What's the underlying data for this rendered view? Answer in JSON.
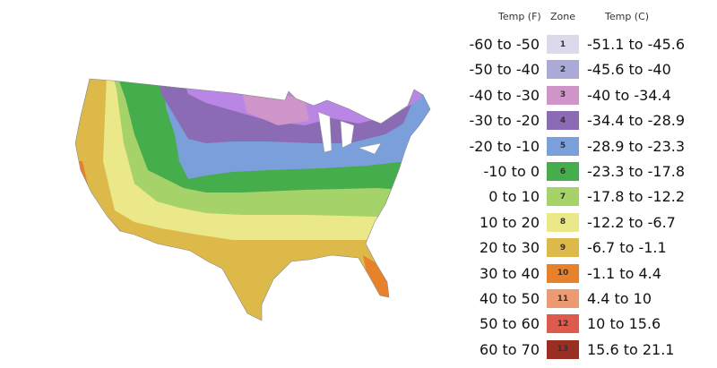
{
  "legend": {
    "headers": {
      "temp_f": "Temp (F)",
      "zone": "Zone",
      "temp_c": "Temp (C)"
    },
    "zones": [
      {
        "zone": "1",
        "temp_f": "-60 to -50",
        "temp_c": "-51.1 to -45.6",
        "color": "#dcd9ec"
      },
      {
        "zone": "2",
        "temp_f": "-50 to -40",
        "temp_c": "-45.6 to -40",
        "color": "#aaa9d8"
      },
      {
        "zone": "3",
        "temp_f": "-40 to -30",
        "temp_c": "-40 to -34.4",
        "color": "#cf95c9"
      },
      {
        "zone": "4",
        "temp_f": "-30 to -20",
        "temp_c": "-34.4 to -28.9",
        "color": "#8b6cb4"
      },
      {
        "zone": "5",
        "temp_f": "-20 to -10",
        "temp_c": "-28.9 to -23.3",
        "color": "#7a9fdb"
      },
      {
        "zone": "6",
        "temp_f": "-10 to 0",
        "temp_c": "-23.3 to -17.8",
        "color": "#45ad4b"
      },
      {
        "zone": "7",
        "temp_f": "0 to 10",
        "temp_c": "-17.8 to -12.2",
        "color": "#a6d26a"
      },
      {
        "zone": "8",
        "temp_f": "10 to 20",
        "temp_c": "-12.2 to -6.7",
        "color": "#ebe88a"
      },
      {
        "zone": "9",
        "temp_f": "20 to 30",
        "temp_c": "-6.7 to -1.1",
        "color": "#ddb94a"
      },
      {
        "zone": "10",
        "temp_f": "30 to 40",
        "temp_c": "-1.1 to 4.4",
        "color": "#e8822a"
      },
      {
        "zone": "11",
        "temp_f": "40 to 50",
        "temp_c": "4.4 to 10",
        "color": "#ec9a72"
      },
      {
        "zone": "12",
        "temp_f": "50 to 60",
        "temp_c": "10 to 15.6",
        "color": "#dd5a4c"
      },
      {
        "zone": "13",
        "temp_f": "60 to 70",
        "temp_c": "15.6 to 21.1",
        "color": "#9a2e22"
      }
    ]
  }
}
